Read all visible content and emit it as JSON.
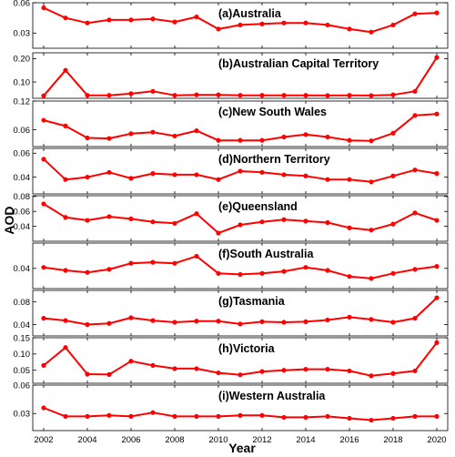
{
  "chart_data": {
    "type": "line",
    "layout": "small-multiples (9 stacked panels, shared x-axis)",
    "xlabel": "Year",
    "ylabel": "AOD",
    "x": [
      2002,
      2003,
      2004,
      2005,
      2006,
      2007,
      2008,
      2009,
      2010,
      2011,
      2012,
      2013,
      2014,
      2015,
      2016,
      2017,
      2018,
      2019,
      2020
    ],
    "x_ticks": [
      "2002",
      "2004",
      "2006",
      "2008",
      "2010",
      "2012",
      "2014",
      "2016",
      "2018",
      "2020"
    ],
    "xlim": [
      2001.5,
      2020.5
    ],
    "series_color": "#ff0000",
    "grid": false,
    "panels": [
      {
        "title": "(a)Australia",
        "ylim": [
          0.015,
          0.06
        ],
        "yticks": [
          0.03,
          0.06
        ],
        "ytick_labels": [
          "0.03",
          "0.06"
        ],
        "values": [
          0.055,
          0.045,
          0.04,
          0.043,
          0.043,
          0.044,
          0.041,
          0.046,
          0.034,
          0.038,
          0.039,
          0.04,
          0.04,
          0.038,
          0.034,
          0.031,
          0.038,
          0.049,
          0.05
        ]
      },
      {
        "title": "(b)Australian Capital Territory",
        "ylim": [
          0.03,
          0.225
        ],
        "yticks": [
          0.1,
          0.2
        ],
        "ytick_labels": [
          "0.10",
          "0.20"
        ],
        "values": [
          0.041,
          0.15,
          0.043,
          0.043,
          0.05,
          0.06,
          0.043,
          0.045,
          0.045,
          0.043,
          0.043,
          0.043,
          0.043,
          0.042,
          0.043,
          0.042,
          0.045,
          0.06,
          0.205
        ]
      },
      {
        "title": "(c)New South Wales",
        "ylim": [
          0.025,
          0.12
        ],
        "yticks": [
          0.06,
          0.12
        ],
        "ytick_labels": [
          "0.06",
          "0.12"
        ],
        "values": [
          0.08,
          0.068,
          0.043,
          0.042,
          0.052,
          0.055,
          0.047,
          0.058,
          0.038,
          0.038,
          0.038,
          0.045,
          0.05,
          0.045,
          0.038,
          0.037,
          0.053,
          0.09,
          0.093
        ]
      },
      {
        "title": "(d)Northern Territory",
        "ylim": [
          0.026,
          0.064
        ],
        "yticks": [
          0.04,
          0.06
        ],
        "ytick_labels": [
          "0.04",
          "0.06"
        ],
        "values": [
          0.055,
          0.038,
          0.04,
          0.044,
          0.039,
          0.043,
          0.042,
          0.042,
          0.038,
          0.045,
          0.044,
          0.042,
          0.041,
          0.038,
          0.038,
          0.036,
          0.041,
          0.046,
          0.043
        ]
      },
      {
        "title": "(e)Queensland",
        "ylim": [
          0.02,
          0.081
        ],
        "yticks": [
          0.04,
          0.06,
          0.08
        ],
        "ytick_labels": [
          "0.04",
          "0.06",
          "0.08"
        ],
        "values": [
          0.07,
          0.052,
          0.048,
          0.053,
          0.05,
          0.046,
          0.044,
          0.057,
          0.031,
          0.042,
          0.046,
          0.049,
          0.047,
          0.045,
          0.038,
          0.035,
          0.043,
          0.058,
          0.048
        ]
      },
      {
        "title": "(f)South Australia",
        "ylim": [
          0.02,
          0.065
        ],
        "yticks": [
          0.04
        ],
        "ytick_labels": [
          "0.04"
        ],
        "values": [
          0.041,
          0.038,
          0.036,
          0.039,
          0.045,
          0.046,
          0.045,
          0.052,
          0.035,
          0.034,
          0.035,
          0.037,
          0.041,
          0.038,
          0.032,
          0.03,
          0.035,
          0.039,
          0.042
        ]
      },
      {
        "title": "(g)Tasmania",
        "ylim": [
          0.02,
          0.1
        ],
        "yticks": [
          0.04,
          0.08
        ],
        "ytick_labels": [
          "0.04",
          "0.08"
        ],
        "values": [
          0.051,
          0.047,
          0.04,
          0.042,
          0.052,
          0.047,
          0.044,
          0.046,
          0.046,
          0.041,
          0.045,
          0.044,
          0.045,
          0.048,
          0.053,
          0.049,
          0.044,
          0.051,
          0.087
        ]
      },
      {
        "title": "(h)Victoria",
        "ylim": [
          0.01,
          0.15
        ],
        "yticks": [
          0.05,
          0.1,
          0.15
        ],
        "ytick_labels": [
          "0.05",
          "0.10",
          "0.15"
        ],
        "values": [
          0.065,
          0.12,
          0.038,
          0.037,
          0.078,
          0.065,
          0.055,
          0.055,
          0.042,
          0.036,
          0.046,
          0.05,
          0.053,
          0.053,
          0.048,
          0.033,
          0.04,
          0.048,
          0.135
        ]
      },
      {
        "title": "(i)Western Australia",
        "ylim": [
          0.012,
          0.06
        ],
        "yticks": [
          0.03,
          0.06
        ],
        "ytick_labels": [
          "0.03",
          "0.06"
        ],
        "values": [
          0.036,
          0.027,
          0.027,
          0.028,
          0.027,
          0.031,
          0.027,
          0.027,
          0.027,
          0.028,
          0.028,
          0.026,
          0.026,
          0.027,
          0.025,
          0.023,
          0.025,
          0.027,
          0.027
        ]
      }
    ]
  }
}
